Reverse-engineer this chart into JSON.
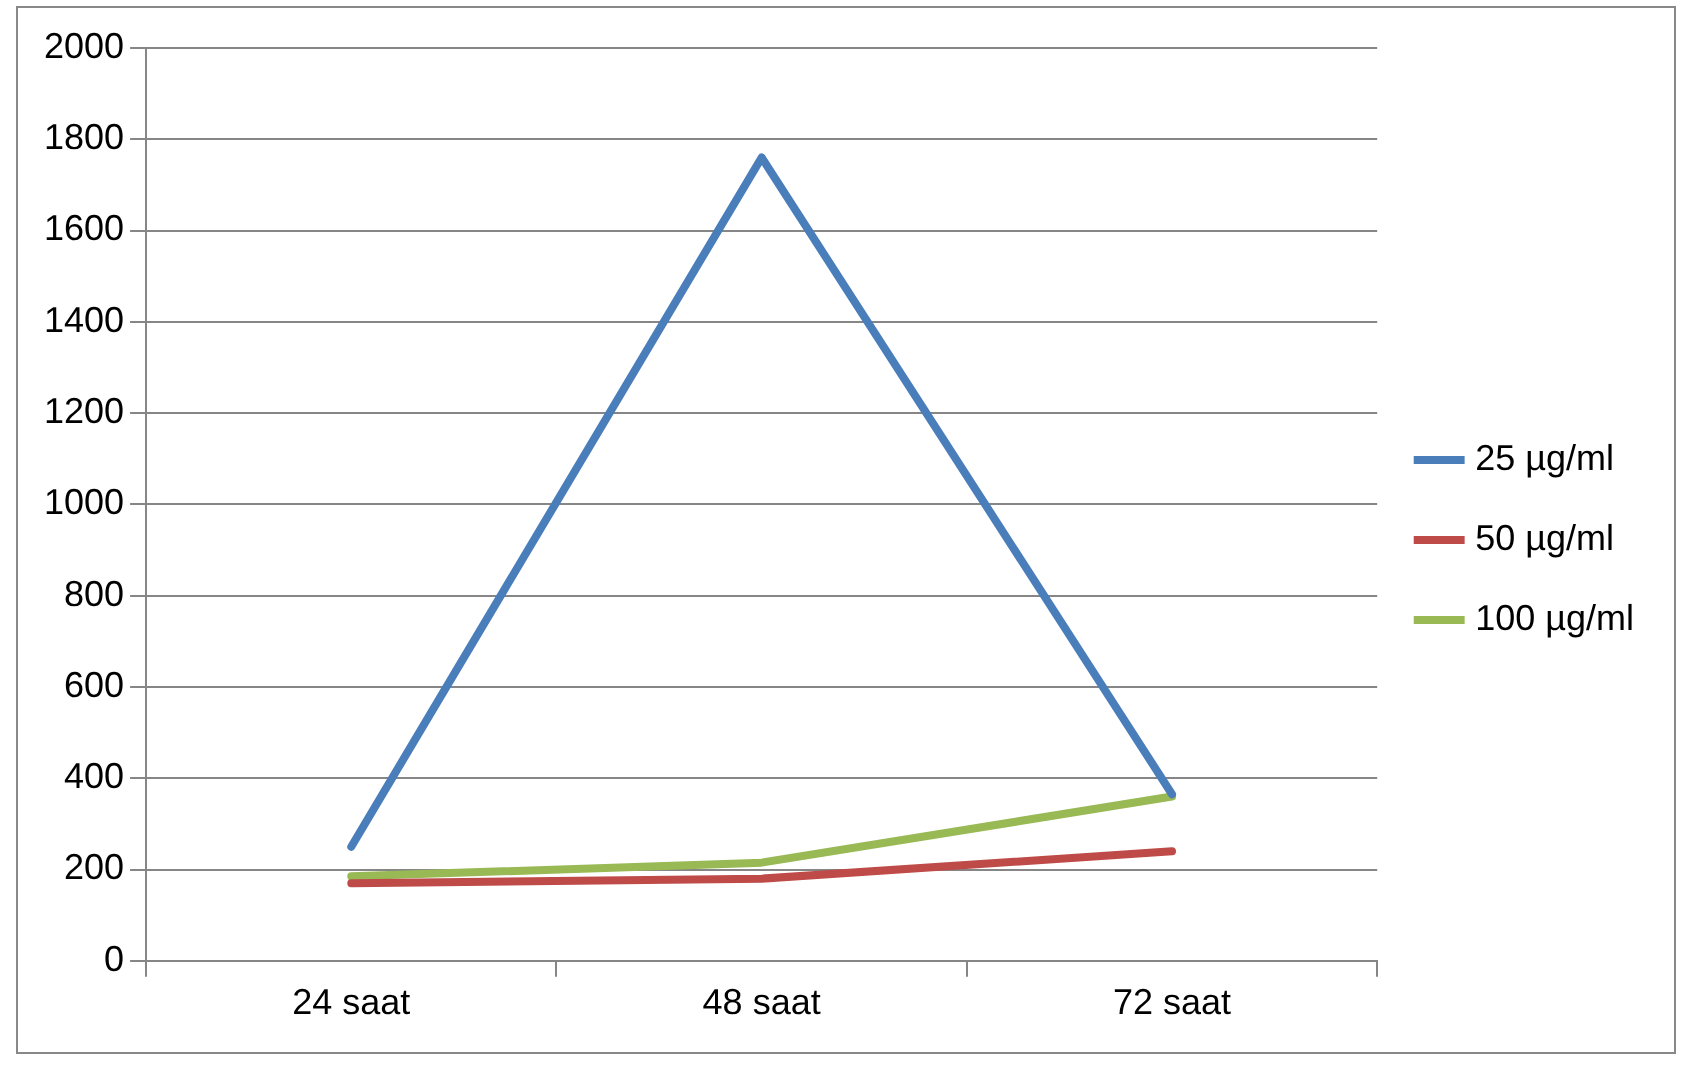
{
  "chart_data": {
    "type": "line",
    "categories": [
      "24 saat",
      "48 saat",
      "72 saat"
    ],
    "series": [
      {
        "name": "25 µg/ml",
        "color": "#4a7ebb",
        "values": [
          250,
          1760,
          365
        ]
      },
      {
        "name": "50 µg/ml",
        "color": "#be4b48",
        "values": [
          170,
          180,
          240
        ]
      },
      {
        "name": "100 µg/ml",
        "color": "#98b954",
        "values": [
          185,
          215,
          360
        ]
      }
    ],
    "ylim": [
      0,
      2000
    ],
    "yticks": [
      0,
      200,
      400,
      600,
      800,
      1000,
      1200,
      1400,
      1600,
      1800,
      2000
    ],
    "grid": "y",
    "legend": "right",
    "marker": "none",
    "line_style": "solid"
  }
}
